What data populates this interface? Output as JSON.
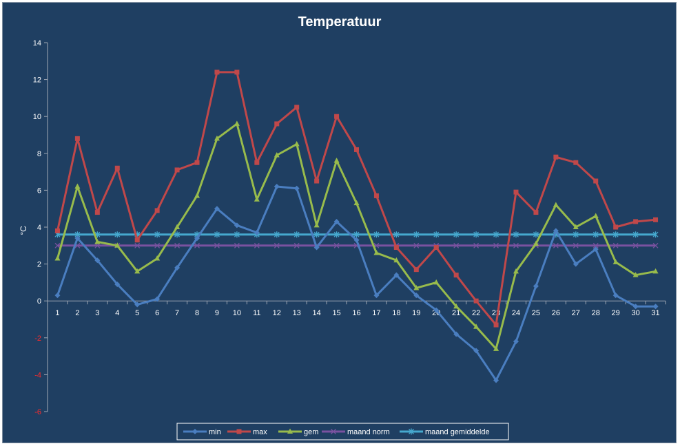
{
  "chart_data": {
    "type": "line",
    "title": "Temperatuur",
    "ylabel": "°C",
    "xlabel": "",
    "ylim": [
      -6,
      14
    ],
    "yticks": [
      -6,
      -4,
      -2,
      0,
      2,
      4,
      6,
      8,
      10,
      12,
      14
    ],
    "categories": [
      "1",
      "2",
      "3",
      "4",
      "5",
      "6",
      "7",
      "8",
      "9",
      "10",
      "11",
      "12",
      "13",
      "14",
      "15",
      "16",
      "17",
      "18",
      "19",
      "20",
      "21",
      "22",
      "23",
      "24",
      "25",
      "26",
      "27",
      "28",
      "29",
      "30",
      "31"
    ],
    "grid": false,
    "legend_position": "bottom",
    "series": [
      {
        "name": "min",
        "color": "#4a7ec0",
        "marker": "diamond",
        "values": [
          0.3,
          3.4,
          2.2,
          0.9,
          -0.2,
          0.1,
          1.8,
          3.4,
          5.0,
          4.1,
          3.7,
          6.2,
          6.1,
          2.9,
          4.3,
          3.3,
          0.3,
          1.4,
          0.3,
          -0.5,
          -1.8,
          -2.7,
          -4.3,
          -2.2,
          0.8,
          3.8,
          2.0,
          2.8,
          0.3,
          -0.3,
          -0.3
        ]
      },
      {
        "name": "max",
        "color": "#c0484a",
        "marker": "square",
        "values": [
          3.8,
          8.8,
          4.8,
          7.2,
          3.3,
          4.9,
          7.1,
          7.5,
          12.4,
          12.4,
          7.5,
          9.6,
          10.5,
          6.5,
          10.0,
          8.2,
          5.7,
          2.9,
          1.7,
          2.9,
          1.4,
          0.0,
          -1.3,
          5.9,
          4.8,
          7.8,
          7.5,
          6.5,
          4.0,
          4.3,
          4.4
        ]
      },
      {
        "name": "gem",
        "color": "#98bb4c",
        "marker": "triangle",
        "values": [
          2.3,
          6.2,
          3.2,
          3.0,
          1.6,
          2.3,
          4.0,
          5.7,
          8.8,
          9.6,
          5.5,
          7.9,
          8.5,
          4.1,
          7.6,
          5.3,
          2.6,
          2.2,
          0.7,
          1.0,
          -0.3,
          -1.4,
          -2.6,
          1.6,
          3.1,
          5.2,
          4.0,
          4.6,
          2.1,
          1.4,
          1.6
        ]
      },
      {
        "name": "maand norm",
        "color": "#7a52a0",
        "marker": "x",
        "values": [
          3.0,
          3.0,
          3.0,
          3.0,
          3.0,
          3.0,
          3.0,
          3.0,
          3.0,
          3.0,
          3.0,
          3.0,
          3.0,
          3.0,
          3.0,
          3.0,
          3.0,
          3.0,
          3.0,
          3.0,
          3.0,
          3.0,
          3.0,
          3.0,
          3.0,
          3.0,
          3.0,
          3.0,
          3.0,
          3.0,
          3.0
        ]
      },
      {
        "name": "maand gemiddelde",
        "color": "#46a9cf",
        "marker": "star",
        "values": [
          3.6,
          3.6,
          3.6,
          3.6,
          3.6,
          3.6,
          3.6,
          3.6,
          3.6,
          3.6,
          3.6,
          3.6,
          3.6,
          3.6,
          3.6,
          3.6,
          3.6,
          3.6,
          3.6,
          3.6,
          3.6,
          3.6,
          3.6,
          3.6,
          3.6,
          3.6,
          3.6,
          3.6,
          3.6,
          3.6,
          3.6
        ]
      }
    ]
  }
}
